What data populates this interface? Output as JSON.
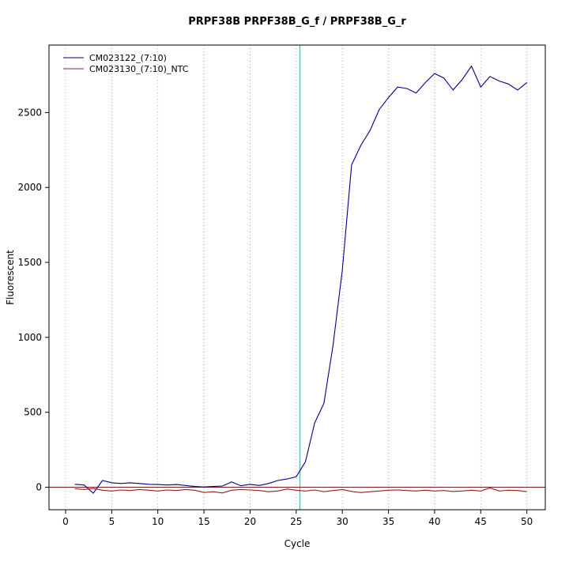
{
  "window": {
    "background": "#ffffff"
  },
  "chart_data": {
    "type": "line",
    "title": "PRPF38B  PRPF38B_G_f / PRPF38B_G_r",
    "xlabel": "Cycle",
    "ylabel": "Fluorescent",
    "x_ticks": [
      0,
      5,
      10,
      15,
      20,
      25,
      30,
      35,
      40,
      45,
      50
    ],
    "y_ticks": [
      0,
      500,
      1000,
      1500,
      2000,
      2500
    ],
    "xlim": [
      -1.8,
      52
    ],
    "ylim": [
      -150,
      2950
    ],
    "grid": "vertical-dotted",
    "grid_color": "#a8a8a8",
    "legend_position": "top-left",
    "threshold_line": {
      "x": 25.4,
      "color": "#00dddd"
    },
    "zero_line": {
      "y": 0,
      "color": "#7a1f1f"
    },
    "x": [
      1,
      2,
      3,
      4,
      5,
      6,
      7,
      8,
      9,
      10,
      11,
      12,
      13,
      14,
      15,
      16,
      17,
      18,
      19,
      20,
      21,
      22,
      23,
      24,
      25,
      26,
      27,
      28,
      29,
      30,
      31,
      32,
      33,
      34,
      35,
      36,
      37,
      38,
      39,
      40,
      41,
      42,
      43,
      44,
      45,
      46,
      47,
      48,
      49,
      50
    ],
    "series": [
      {
        "name": "CM023122_(7:10)",
        "color": "#00008B",
        "values": [
          20,
          15,
          -40,
          45,
          30,
          25,
          30,
          25,
          20,
          18,
          15,
          18,
          12,
          5,
          2,
          5,
          8,
          35,
          10,
          20,
          12,
          25,
          45,
          55,
          70,
          170,
          430,
          560,
          950,
          1450,
          2150,
          2280,
          2380,
          2520,
          2600,
          2670,
          2660,
          2630,
          2700,
          2760,
          2730,
          2650,
          2720,
          2810,
          2670,
          2740,
          2710,
          2690,
          2650,
          2700
        ]
      },
      {
        "name": "CM023130_(7:10)_NTC",
        "color": "#8B2323",
        "values": [
          -10,
          -15,
          -8,
          -20,
          -25,
          -18,
          -22,
          -15,
          -20,
          -25,
          -18,
          -22,
          -15,
          -20,
          -35,
          -30,
          -38,
          -20,
          -15,
          -18,
          -22,
          -30,
          -25,
          -12,
          -20,
          -25,
          -18,
          -30,
          -22,
          -15,
          -28,
          -35,
          -30,
          -25,
          -20,
          -18,
          -22,
          -25,
          -20,
          -25,
          -22,
          -28,
          -25,
          -20,
          -25,
          -5,
          -25,
          -20,
          -22,
          -30
        ]
      }
    ]
  }
}
